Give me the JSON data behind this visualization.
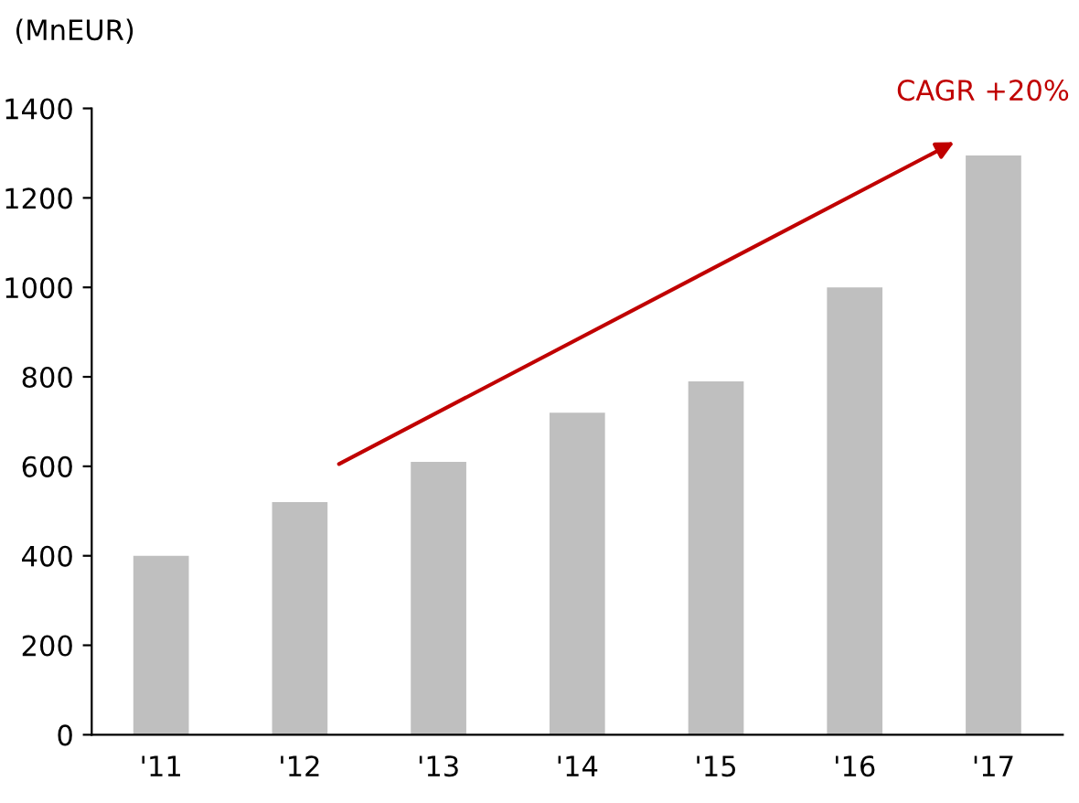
{
  "chart_data": {
    "type": "bar",
    "ylabel": "(MnEUR)",
    "categories": [
      "'11",
      "'12",
      "'13",
      "'14",
      "'15",
      "'16",
      "'17"
    ],
    "values": [
      400,
      520,
      610,
      720,
      790,
      1000,
      1295
    ],
    "color": "#bfbfbf",
    "ylim": [
      0,
      1400
    ],
    "yticks": [
      0,
      200,
      400,
      600,
      800,
      1000,
      1200,
      1400
    ],
    "grid": false,
    "legend": false,
    "annotations": [
      "CAGR +20%"
    ]
  }
}
